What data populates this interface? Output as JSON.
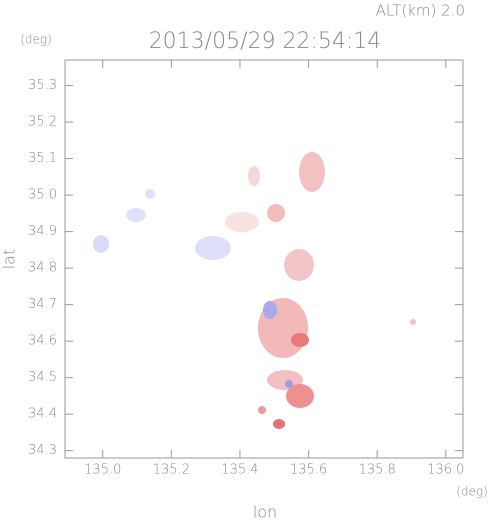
{
  "chart_data": {
    "type": "map",
    "title": "2013/05/29 22:54:14",
    "annotation": "ALT(km) 2.0",
    "y_unit": "(deg)",
    "x_unit": "(deg)",
    "xlabel": "lon",
    "ylabel": "lat",
    "xlim": [
      134.89,
      136.05
    ],
    "ylim": [
      34.28,
      35.37
    ],
    "xticks": [
      {
        "value": 135,
        "label": "135.0"
      },
      135.2,
      135.4,
      135.6,
      135.8,
      {
        "value": 136,
        "label": "136.0"
      }
    ],
    "yticks": [
      34.3,
      34.4,
      34.5,
      34.6,
      34.7,
      34.8,
      34.9,
      {
        "value": 35,
        "label": "35.0"
      },
      35.1,
      35.2,
      35.3
    ]
  }
}
